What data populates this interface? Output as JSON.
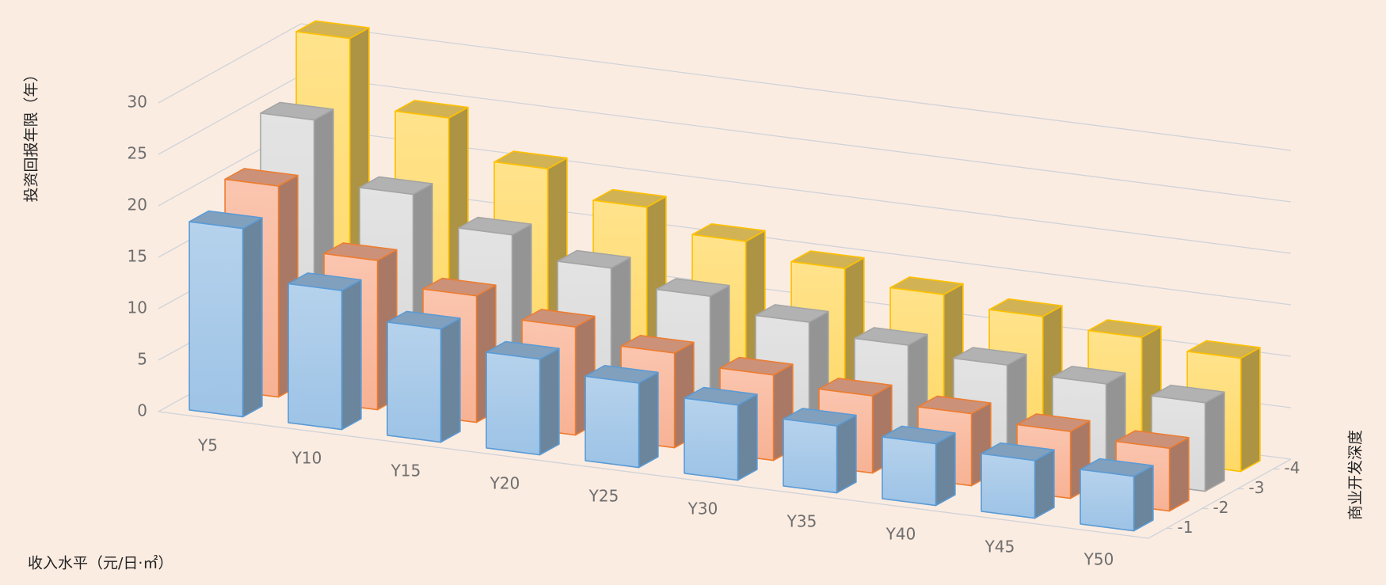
{
  "chart_data": {
    "type": "bar3d",
    "ylabel": "投资回报年限（年）",
    "xlabel": "收入水平（元/日·㎡）",
    "zlabel": "商业开发深度",
    "categories": [
      "Y5",
      "Y10",
      "Y15",
      "Y20",
      "Y25",
      "Y30",
      "Y35",
      "Y40",
      "Y45",
      "Y50"
    ],
    "series": [
      {
        "name": "-1",
        "color": "#9dc3e6",
        "edgecolor": "#5b9bd5",
        "values": [
          18.3,
          13.5,
          11,
          9.3,
          8.2,
          7.3,
          6.5,
          6,
          5.6,
          5.3
        ]
      },
      {
        "name": "-2",
        "color": "#f8b294",
        "edgecolor": "#ed7d31",
        "values": [
          20.5,
          14.5,
          12.3,
          10.5,
          9.2,
          8.3,
          7.5,
          7,
          6.5,
          6.1
        ]
      },
      {
        "name": "-3",
        "color": "#d9d9d9",
        "edgecolor": "#a5a5a5",
        "values": [
          25,
          19,
          16.3,
          14.3,
          12.8,
          11.5,
          10.5,
          9.8,
          9.2,
          8.6
        ]
      },
      {
        "name": "-4",
        "color": "#ffd966",
        "edgecolor": "#ffc000",
        "values": [
          31,
          24.5,
          20.8,
          18.3,
          16.2,
          14.8,
          13.5,
          12.6,
          11.8,
          11
        ]
      }
    ],
    "ylim": [
      0,
      30
    ],
    "yticks": [
      0,
      5,
      10,
      15,
      20,
      25,
      30
    ],
    "grid": true
  }
}
